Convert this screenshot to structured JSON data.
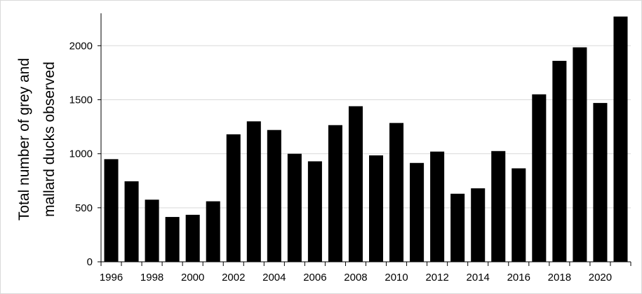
{
  "chart_data": {
    "type": "bar",
    "title": "",
    "xlabel": "",
    "ylabel": [
      "Total number of grey and",
      "mallard ducks observed"
    ],
    "categories": [
      "1996",
      "1997",
      "1998",
      "1999",
      "2000",
      "2001",
      "2002",
      "2003",
      "2004",
      "2005",
      "2006",
      "2007",
      "2008",
      "2009",
      "2010",
      "2011",
      "2012",
      "2013",
      "2014",
      "2015",
      "2016",
      "2017",
      "2018",
      "2019",
      "2020",
      "2021"
    ],
    "x_tick_labels": [
      "1996",
      "1998",
      "2000",
      "2002",
      "2004",
      "2006",
      "2008",
      "2010",
      "2012",
      "2014",
      "2016",
      "2018",
      "2020"
    ],
    "values": [
      950,
      745,
      575,
      415,
      435,
      560,
      1180,
      1300,
      1220,
      1000,
      930,
      1265,
      1440,
      985,
      1285,
      915,
      1020,
      630,
      680,
      1025,
      865,
      1550,
      1860,
      1985,
      1470,
      2270
    ],
    "ylim": [
      0,
      2300
    ],
    "y_ticks": [
      0,
      500,
      1000,
      1500,
      2000
    ],
    "grid": "horizontal",
    "bar_color": "#000000",
    "grid_color": "#d9d9d9"
  }
}
